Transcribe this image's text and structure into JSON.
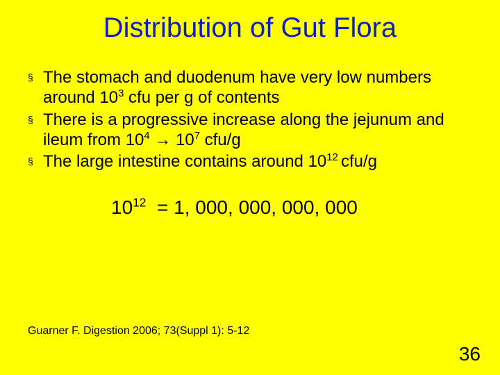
{
  "colors": {
    "background": "#ffff00",
    "title": "#1020c0",
    "body": "#000000"
  },
  "title": "Distribution of Gut Flora",
  "bullets": [
    {
      "pre": "The stomach and duodenum have very low numbers around 10",
      "sup": "3",
      "post": " cfu per g of contents"
    },
    {
      "pre": "There is a progressive increase along the jejunum and ileum from 10",
      "sup": "4",
      "mid": " → 10",
      "sup2": "7",
      "post": " cfu/g"
    },
    {
      "pre": "The large intestine contains around 10",
      "sup": "12 ",
      "post": "cfu/g"
    }
  ],
  "emphasis": {
    "base": "10",
    "sup": "12",
    "rest": "  = 1, 000, 000, 000, 000"
  },
  "citation": "Guarner F. Digestion 2006; 73(Suppl 1): 5-12",
  "pageNumber": "36",
  "bulletGlyph": "§"
}
